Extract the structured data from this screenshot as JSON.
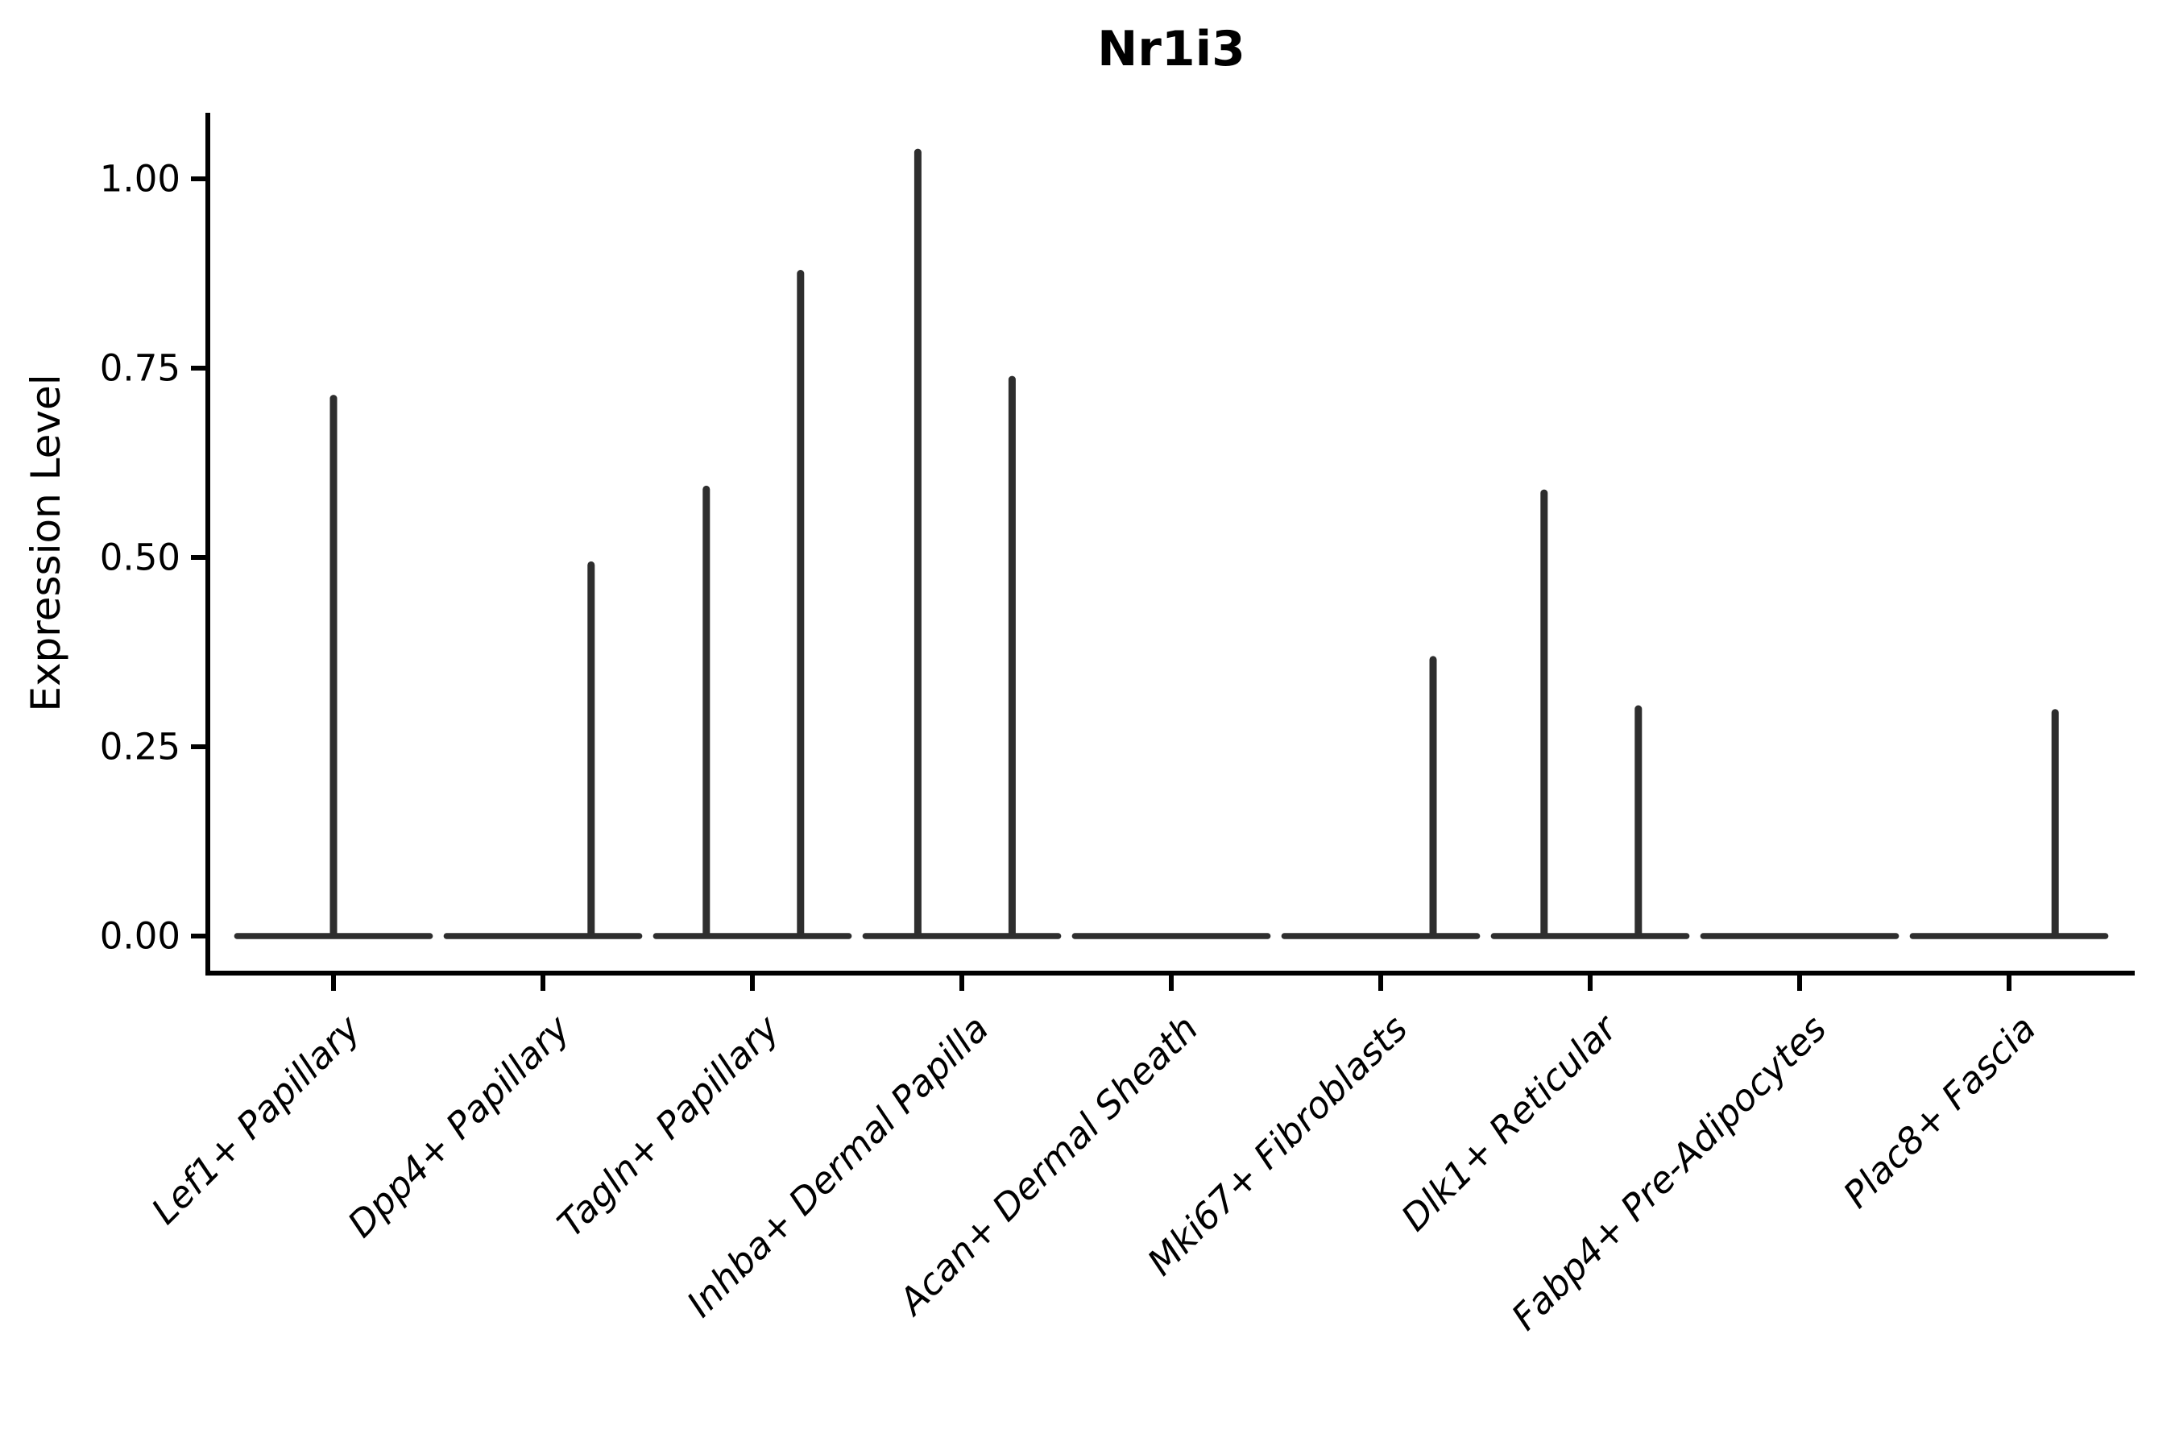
{
  "title": "Nr1i3",
  "ylabel": "Expression Level",
  "colors": {
    "violin": "#2e2e2e",
    "axis": "#000000",
    "text": "#000000",
    "background": "#ffffff"
  },
  "chart_data": {
    "type": "violin",
    "title": "Nr1i3",
    "xlabel": "",
    "ylabel": "Expression Level",
    "grid": false,
    "legend": "none",
    "ylim": [
      -0.05,
      1.087
    ],
    "yticks": [
      {
        "value": 1.0,
        "label": "1.00"
      },
      {
        "value": 0.75,
        "label": "0.75"
      },
      {
        "value": 0.5,
        "label": "0.50"
      },
      {
        "value": 0.25,
        "label": "0.25"
      },
      {
        "value": 0.0,
        "label": "0.00"
      }
    ],
    "categories": [
      "Lef1+ Papillary",
      "Dpp4+ Papillary",
      "Tagln+ Papillary",
      "Inhba+ Dermal Papilla",
      "Acan+ Dermal Sheath",
      "Mki67+ Fibroblasts",
      "Dlk1+ Reticular",
      "Fabp4+ Pre-Adipocytes",
      "Plac8+ Fascia"
    ],
    "violins": [
      {
        "category": "Lef1+ Papillary",
        "baseline_value": 0.0,
        "spikes": [
          {
            "offset": 0.0,
            "value": 0.71
          }
        ]
      },
      {
        "category": "Dpp4+ Papillary",
        "baseline_value": 0.0,
        "spikes": [
          {
            "offset": 0.23,
            "value": 0.49
          }
        ]
      },
      {
        "category": "Tagln+ Papillary",
        "baseline_value": 0.0,
        "spikes": [
          {
            "offset": -0.22,
            "value": 0.59
          },
          {
            "offset": 0.23,
            "value": 0.875
          }
        ]
      },
      {
        "category": "Inhba+ Dermal Papilla",
        "baseline_value": 0.0,
        "spikes": [
          {
            "offset": -0.21,
            "value": 1.035
          },
          {
            "offset": 0.24,
            "value": 0.735
          }
        ]
      },
      {
        "category": "Acan+ Dermal Sheath",
        "baseline_value": 0.0,
        "spikes": []
      },
      {
        "category": "Mki67+ Fibroblasts",
        "baseline_value": 0.0,
        "spikes": [
          {
            "offset": 0.25,
            "value": 0.365
          }
        ]
      },
      {
        "category": "Dlk1+ Reticular",
        "baseline_value": 0.0,
        "spikes": [
          {
            "offset": -0.22,
            "value": 0.585
          },
          {
            "offset": 0.23,
            "value": 0.3
          }
        ]
      },
      {
        "category": "Fabp4+ Pre-Adipocytes",
        "baseline_value": 0.0,
        "spikes": []
      },
      {
        "category": "Plac8+ Fascia",
        "baseline_value": 0.0,
        "spikes": [
          {
            "offset": 0.22,
            "value": 0.295
          }
        ]
      }
    ]
  }
}
